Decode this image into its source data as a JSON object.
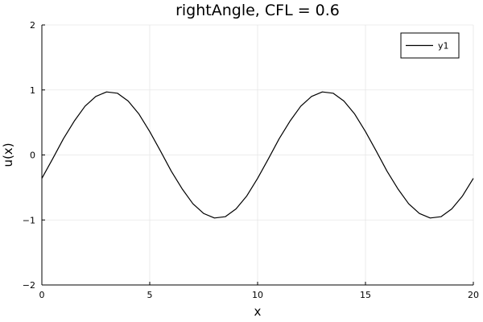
{
  "chart_data": {
    "type": "line",
    "title": "rightAngle, CFL = 0.6",
    "xlabel": "x",
    "ylabel": "u(x)",
    "xlim": [
      0,
      20
    ],
    "ylim": [
      -2,
      2
    ],
    "x_ticks": [
      0,
      5,
      10,
      15,
      20
    ],
    "y_ticks": [
      -2,
      -1,
      0,
      1,
      2
    ],
    "grid": true,
    "legend_position": "top-right",
    "series": [
      {
        "name": "y1",
        "color": "#000000",
        "x": [
          0,
          0.5,
          1,
          1.5,
          2,
          2.5,
          3,
          3.5,
          4,
          4.5,
          5,
          5.5,
          6,
          6.5,
          7,
          7.5,
          8,
          8.5,
          9,
          9.5,
          10,
          10.5,
          11,
          11.5,
          12,
          12.5,
          13,
          13.5,
          14,
          14.5,
          15,
          15.5,
          16,
          16.5,
          17,
          17.5,
          18,
          18.5,
          19,
          19.5,
          20
        ],
        "y": [
          -0.36,
          -0.06,
          0.25,
          0.52,
          0.75,
          0.9,
          0.97,
          0.95,
          0.83,
          0.63,
          0.36,
          0.06,
          -0.25,
          -0.52,
          -0.75,
          -0.9,
          -0.97,
          -0.95,
          -0.83,
          -0.63,
          -0.36,
          -0.06,
          0.25,
          0.52,
          0.75,
          0.9,
          0.97,
          0.95,
          0.83,
          0.63,
          0.36,
          0.06,
          -0.25,
          -0.52,
          -0.75,
          -0.9,
          -0.97,
          -0.95,
          -0.83,
          -0.63,
          -0.36
        ]
      }
    ]
  }
}
